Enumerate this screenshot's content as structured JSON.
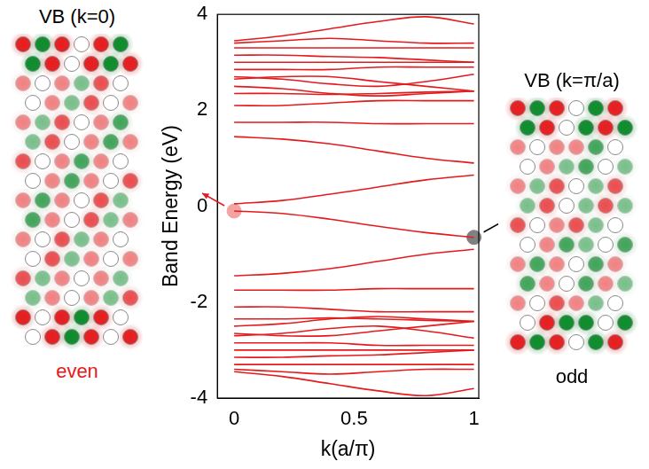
{
  "chart_data": {
    "type": "line",
    "x_label": "k(a/π)",
    "y_label": "Band Energy (eV)",
    "xlim": [
      -0.07,
      1.02
    ],
    "xticks": [
      0,
      0.5,
      1
    ],
    "ylim": [
      -4,
      4
    ],
    "yticks": [
      -4,
      -2,
      0,
      2,
      4
    ],
    "grid": false,
    "color": "#e41a1c",
    "x": [
      0,
      0.2,
      0.4,
      0.6,
      0.8,
      1
    ],
    "series": [
      {
        "values": [
          0.05,
          0.12,
          0.25,
          0.4,
          0.55,
          0.65
        ]
      },
      {
        "values": [
          1.45,
          1.4,
          1.3,
          1.15,
          1.0,
          0.9
        ]
      },
      {
        "values": [
          1.75,
          1.75,
          1.75,
          1.72,
          1.72,
          1.72
        ]
      },
      {
        "values": [
          2.1,
          2.1,
          2.15,
          2.2,
          2.2,
          2.2
        ]
      },
      {
        "values": [
          2.35,
          2.35,
          2.33,
          2.35,
          2.38,
          2.4
        ]
      },
      {
        "values": [
          2.5,
          2.45,
          2.35,
          2.3,
          2.35,
          2.4
        ]
      },
      {
        "values": [
          2.65,
          2.7,
          2.7,
          2.6,
          2.5,
          2.4
        ]
      },
      {
        "values": [
          2.7,
          2.65,
          2.55,
          2.5,
          2.6,
          2.75
        ]
      },
      {
        "values": [
          2.85,
          2.85,
          2.85,
          2.9,
          2.9,
          2.9
        ]
      },
      {
        "values": [
          3.0,
          3.0,
          3.0,
          3.0,
          3.0,
          3.0
        ]
      },
      {
        "values": [
          3.15,
          3.15,
          3.12,
          3.1,
          3.05,
          3.0
        ]
      },
      {
        "values": [
          3.3,
          3.3,
          3.3,
          3.3,
          3.3,
          3.3
        ]
      },
      {
        "values": [
          3.4,
          3.45,
          3.5,
          3.45,
          3.4,
          3.4
        ]
      },
      {
        "values": [
          3.45,
          3.55,
          3.7,
          3.85,
          3.95,
          3.8
        ]
      },
      {
        "values": [
          -0.1,
          -0.15,
          -0.27,
          -0.42,
          -0.55,
          -0.65
        ]
      },
      {
        "values": [
          -1.45,
          -1.4,
          -1.3,
          -1.15,
          -1.0,
          -0.9
        ]
      },
      {
        "values": [
          -1.75,
          -1.75,
          -1.75,
          -1.72,
          -1.72,
          -1.72
        ]
      },
      {
        "values": [
          -2.1,
          -2.1,
          -2.15,
          -2.2,
          -2.2,
          -2.2
        ]
      },
      {
        "values": [
          -2.35,
          -2.35,
          -2.33,
          -2.35,
          -2.38,
          -2.4
        ]
      },
      {
        "values": [
          -2.5,
          -2.45,
          -2.35,
          -2.3,
          -2.35,
          -2.4
        ]
      },
      {
        "values": [
          -2.65,
          -2.7,
          -2.7,
          -2.6,
          -2.5,
          -2.4
        ]
      },
      {
        "values": [
          -2.7,
          -2.65,
          -2.55,
          -2.5,
          -2.6,
          -2.75
        ]
      },
      {
        "values": [
          -2.85,
          -2.85,
          -2.85,
          -2.9,
          -2.9,
          -2.9
        ]
      },
      {
        "values": [
          -3.0,
          -3.0,
          -3.0,
          -3.0,
          -3.0,
          -3.0
        ]
      },
      {
        "values": [
          -3.15,
          -3.15,
          -3.12,
          -3.1,
          -3.05,
          -3.0
        ]
      },
      {
        "values": [
          -3.3,
          -3.3,
          -3.3,
          -3.3,
          -3.3,
          -3.3
        ]
      },
      {
        "values": [
          -3.4,
          -3.45,
          -3.5,
          -3.45,
          -3.4,
          -3.4
        ]
      },
      {
        "values": [
          -3.45,
          -3.55,
          -3.7,
          -3.85,
          -3.95,
          -3.8
        ]
      }
    ],
    "highlights": [
      {
        "x": 0,
        "y": -0.1,
        "color": "#f4a3a3"
      },
      {
        "x": 1,
        "y": -0.65,
        "color": "#808080"
      }
    ]
  },
  "panels": [
    {
      "title": "VB (k=0)",
      "label": "even",
      "label_color": "#e41a1c"
    },
    {
      "title": "VB (k=π/a)",
      "label": "odd",
      "label_color": "#000000"
    }
  ]
}
